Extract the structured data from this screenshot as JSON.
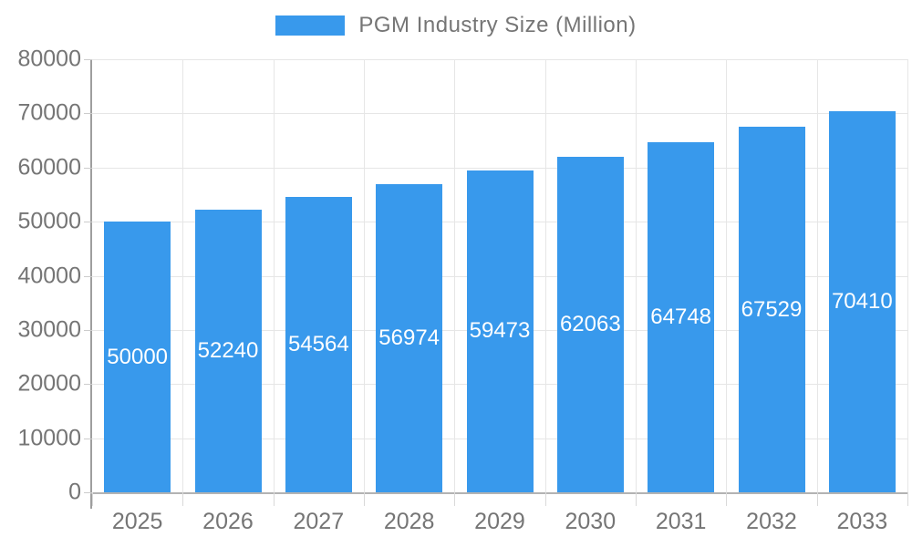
{
  "chart_data": {
    "type": "bar",
    "title": "",
    "legend": "PGM Industry Size (Million)",
    "legend_position": "top",
    "categories": [
      "2025",
      "2026",
      "2027",
      "2028",
      "2029",
      "2030",
      "2031",
      "2032",
      "2033"
    ],
    "series": [
      {
        "name": "PGM Industry Size (Million)",
        "values": [
          50000,
          52240,
          54564,
          56974,
          59473,
          62063,
          64748,
          67529,
          70410
        ]
      }
    ],
    "bar_labels": [
      "50000",
      "52240",
      "54564",
      "56974",
      "59473",
      "62063",
      "64748",
      "67529",
      "70410"
    ],
    "xlabel": "",
    "ylabel": "",
    "ylim": [
      0,
      80000
    ],
    "ytick_step": 10000,
    "ytick_labels": [
      "0",
      "10000",
      "20000",
      "30000",
      "40000",
      "50000",
      "60000",
      "70000",
      "80000"
    ],
    "grid": true,
    "colors": {
      "bar": "#3899EC",
      "grid": "#E6E6E6",
      "axis_x": "#B3B3B3",
      "axis_y": "#9E9E9E",
      "tick_text": "#757575",
      "bar_label_text": "#FFFFFF"
    }
  }
}
